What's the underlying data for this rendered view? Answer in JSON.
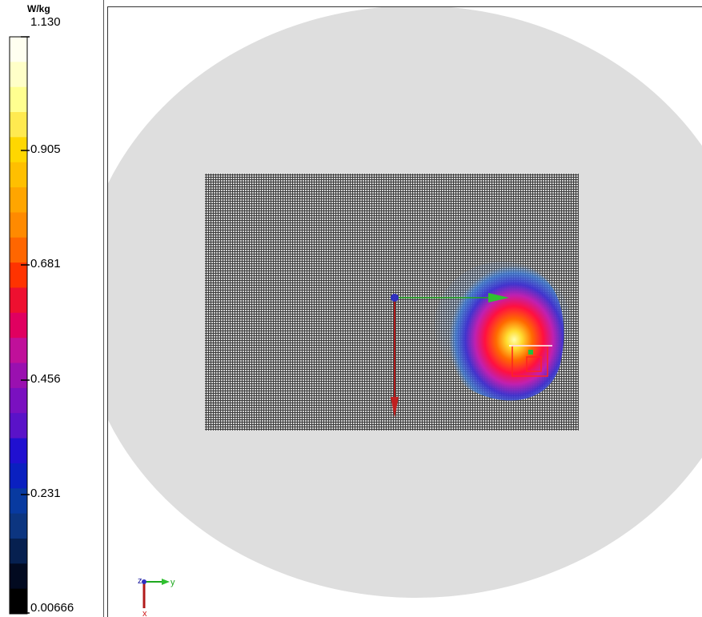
{
  "legend": {
    "unit": "W/kg",
    "ticks": [
      {
        "label": "1.130"
      },
      {
        "label": "0.905"
      },
      {
        "label": "0.681"
      },
      {
        "label": "0.456"
      },
      {
        "label": "0.231"
      },
      {
        "label": "0.00666"
      }
    ],
    "colors": [
      "#fffff0",
      "#ffffc8",
      "#ffff90",
      "#ffea50",
      "#ffd700",
      "#ffbf00",
      "#ffa500",
      "#ff8a00",
      "#ff6600",
      "#ff3300",
      "#ee1030",
      "#e00060",
      "#c0109a",
      "#9a10b0",
      "#7a10c0",
      "#5a12c8",
      "#2010d0",
      "#0a20c0",
      "#083aa0",
      "#0c3580",
      "#062050",
      "#020a20",
      "#000000"
    ]
  },
  "axis_triad": {
    "z_label": "z",
    "y_label": "y",
    "x_label": "x"
  },
  "colors": {
    "phantom": "#dedede",
    "grid_background": "#3e3e3e",
    "axis_y": "#1ea81e",
    "axis_x": "#b21a1a"
  }
}
